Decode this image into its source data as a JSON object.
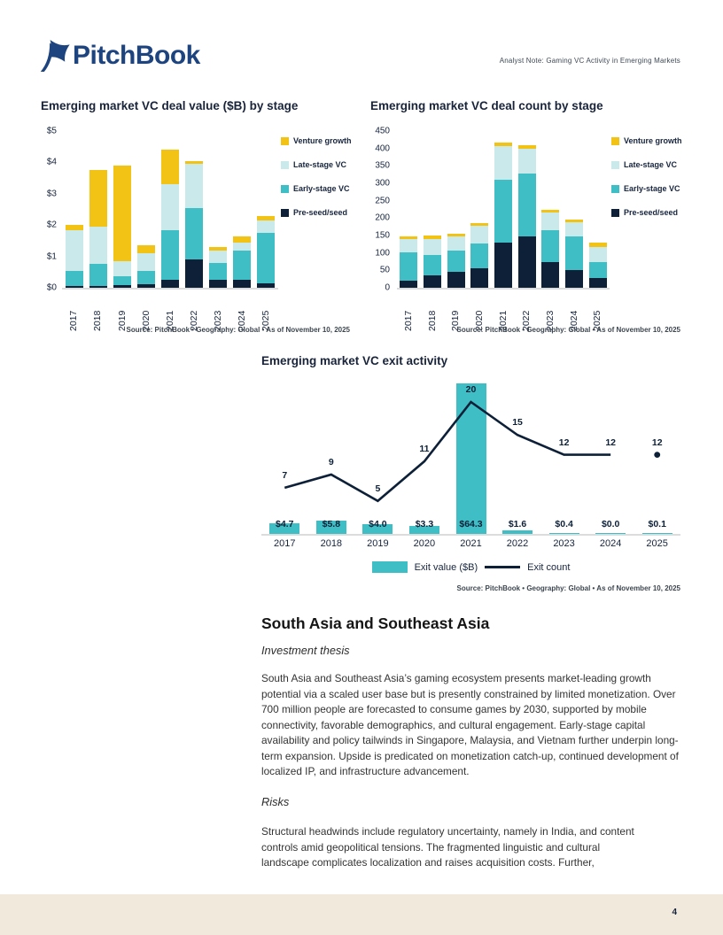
{
  "colors": {
    "navy": "#0D2038",
    "teal": "#3FBFC5",
    "lightcyan": "#C9E9EB",
    "gold": "#F2C314",
    "logo_blue": "#1E4480",
    "footer_beige": "#F1EADC",
    "axis_gray": "#DCDCDC",
    "title_navy": "#19243A"
  },
  "header": {
    "brand": "PitchBook",
    "note": "Analyst Note: Gaming VC Activity in Emerging Markets"
  },
  "chart_data": [
    {
      "id": "deal_value",
      "type": "bar",
      "stacked": true,
      "title": "Emerging market VC deal value ($B) by stage",
      "categories": [
        "2017",
        "2018",
        "2019",
        "2020",
        "2021",
        "2022",
        "2023",
        "2024",
        "2025"
      ],
      "series": [
        {
          "name": "Pre-seed/seed",
          "color": "navy",
          "values": [
            0.05,
            0.05,
            0.08,
            0.1,
            0.25,
            0.9,
            0.25,
            0.25,
            0.15
          ]
        },
        {
          "name": "Early-stage VC",
          "color": "teal",
          "values": [
            0.5,
            0.7,
            0.3,
            0.45,
            1.6,
            1.65,
            0.55,
            0.95,
            1.6
          ]
        },
        {
          "name": "Late-stage VC",
          "color": "lightcyan",
          "values": [
            1.3,
            1.2,
            0.48,
            0.55,
            1.45,
            1.4,
            0.4,
            0.25,
            0.4
          ]
        },
        {
          "name": "Venture growth",
          "color": "gold",
          "values": [
            0.15,
            1.8,
            3.05,
            0.25,
            1.1,
            0.1,
            0.1,
            0.2,
            0.15
          ]
        }
      ],
      "y_ticks": [
        "$5",
        "$4",
        "$3",
        "$2",
        "$1",
        "$0"
      ],
      "ymax": 5,
      "legend_position": "right",
      "source": "Source: PitchBook • Geography: Global • As of November 10, 2025"
    },
    {
      "id": "deal_count",
      "type": "bar",
      "stacked": true,
      "title": "Emerging market VC deal count by stage",
      "categories": [
        "2017",
        "2018",
        "2019",
        "2020",
        "2021",
        "2022",
        "2023",
        "2024",
        "2025"
      ],
      "series": [
        {
          "name": "Pre-seed/seed",
          "color": "navy",
          "values": [
            20,
            35,
            45,
            57,
            130,
            148,
            73,
            50,
            27
          ]
        },
        {
          "name": "Early-stage VC",
          "color": "teal",
          "values": [
            83,
            60,
            62,
            70,
            180,
            180,
            92,
            97,
            46
          ]
        },
        {
          "name": "Late-stage VC",
          "color": "lightcyan",
          "values": [
            37,
            45,
            41,
            50,
            97,
            70,
            52,
            41,
            44
          ]
        },
        {
          "name": "Venture growth",
          "color": "gold",
          "values": [
            8,
            10,
            7,
            8,
            10,
            12,
            7,
            8,
            14
          ]
        }
      ],
      "y_ticks": [
        "450",
        "400",
        "350",
        "300",
        "250",
        "200",
        "150",
        "100",
        "50",
        "0"
      ],
      "ymax": 450,
      "legend_position": "right",
      "source": "Source: PitchBook • Geography: Global • As of November 10, 2025"
    },
    {
      "id": "exit_activity",
      "type": "bar+line",
      "title": "Emerging market VC exit activity",
      "categories": [
        "2017",
        "2018",
        "2019",
        "2020",
        "2021",
        "2022",
        "2023",
        "2024",
        "2025"
      ],
      "bar_series": {
        "name": "Exit value ($B)",
        "values": [
          4.7,
          5.8,
          4.0,
          3.3,
          64.3,
          1.6,
          0.4,
          0.0,
          0.1
        ],
        "labels": [
          "$4.7",
          "$5.8",
          "$4.0",
          "$3.3",
          "$64.3",
          "$1.6",
          "$0.4",
          "$0.0",
          "$0.1"
        ]
      },
      "line_series": {
        "name": "Exit count",
        "values": [
          7,
          9,
          5,
          11,
          20,
          15,
          12,
          12,
          12
        ],
        "last_point_detached_dot": true
      },
      "bar_max": 64.3,
      "legend_position": "bottom",
      "source": "Source: PitchBook • Geography: Global • As of November 10, 2025"
    }
  ],
  "sections": {
    "heading": "South Asia and Southeast Asia",
    "subsections": [
      {
        "title": "Investment thesis",
        "body": "South Asia and Southeast Asia’s gaming ecosystem presents market-leading growth potential via a scaled user base but is presently constrained by limited monetization. Over 700 million people are forecasted to consume games by 2030, supported by mobile connectivity, favorable demographics, and cultural engagement. Early-stage capital availability and policy tailwinds in Singapore, Malaysia, and Vietnam further underpin long-term expansion. Upside is predicated on monetization catch-up, continued development of localized IP, and infrastructure advancement."
      },
      {
        "title": "Risks",
        "body": "Structural headwinds include regulatory uncertainty, namely in India, and content controls amid geopolitical tensions. The fragmented linguistic and cultural landscape complicates localization and raises acquisition costs. Further,"
      }
    ]
  },
  "footer": {
    "page_number": "4"
  }
}
